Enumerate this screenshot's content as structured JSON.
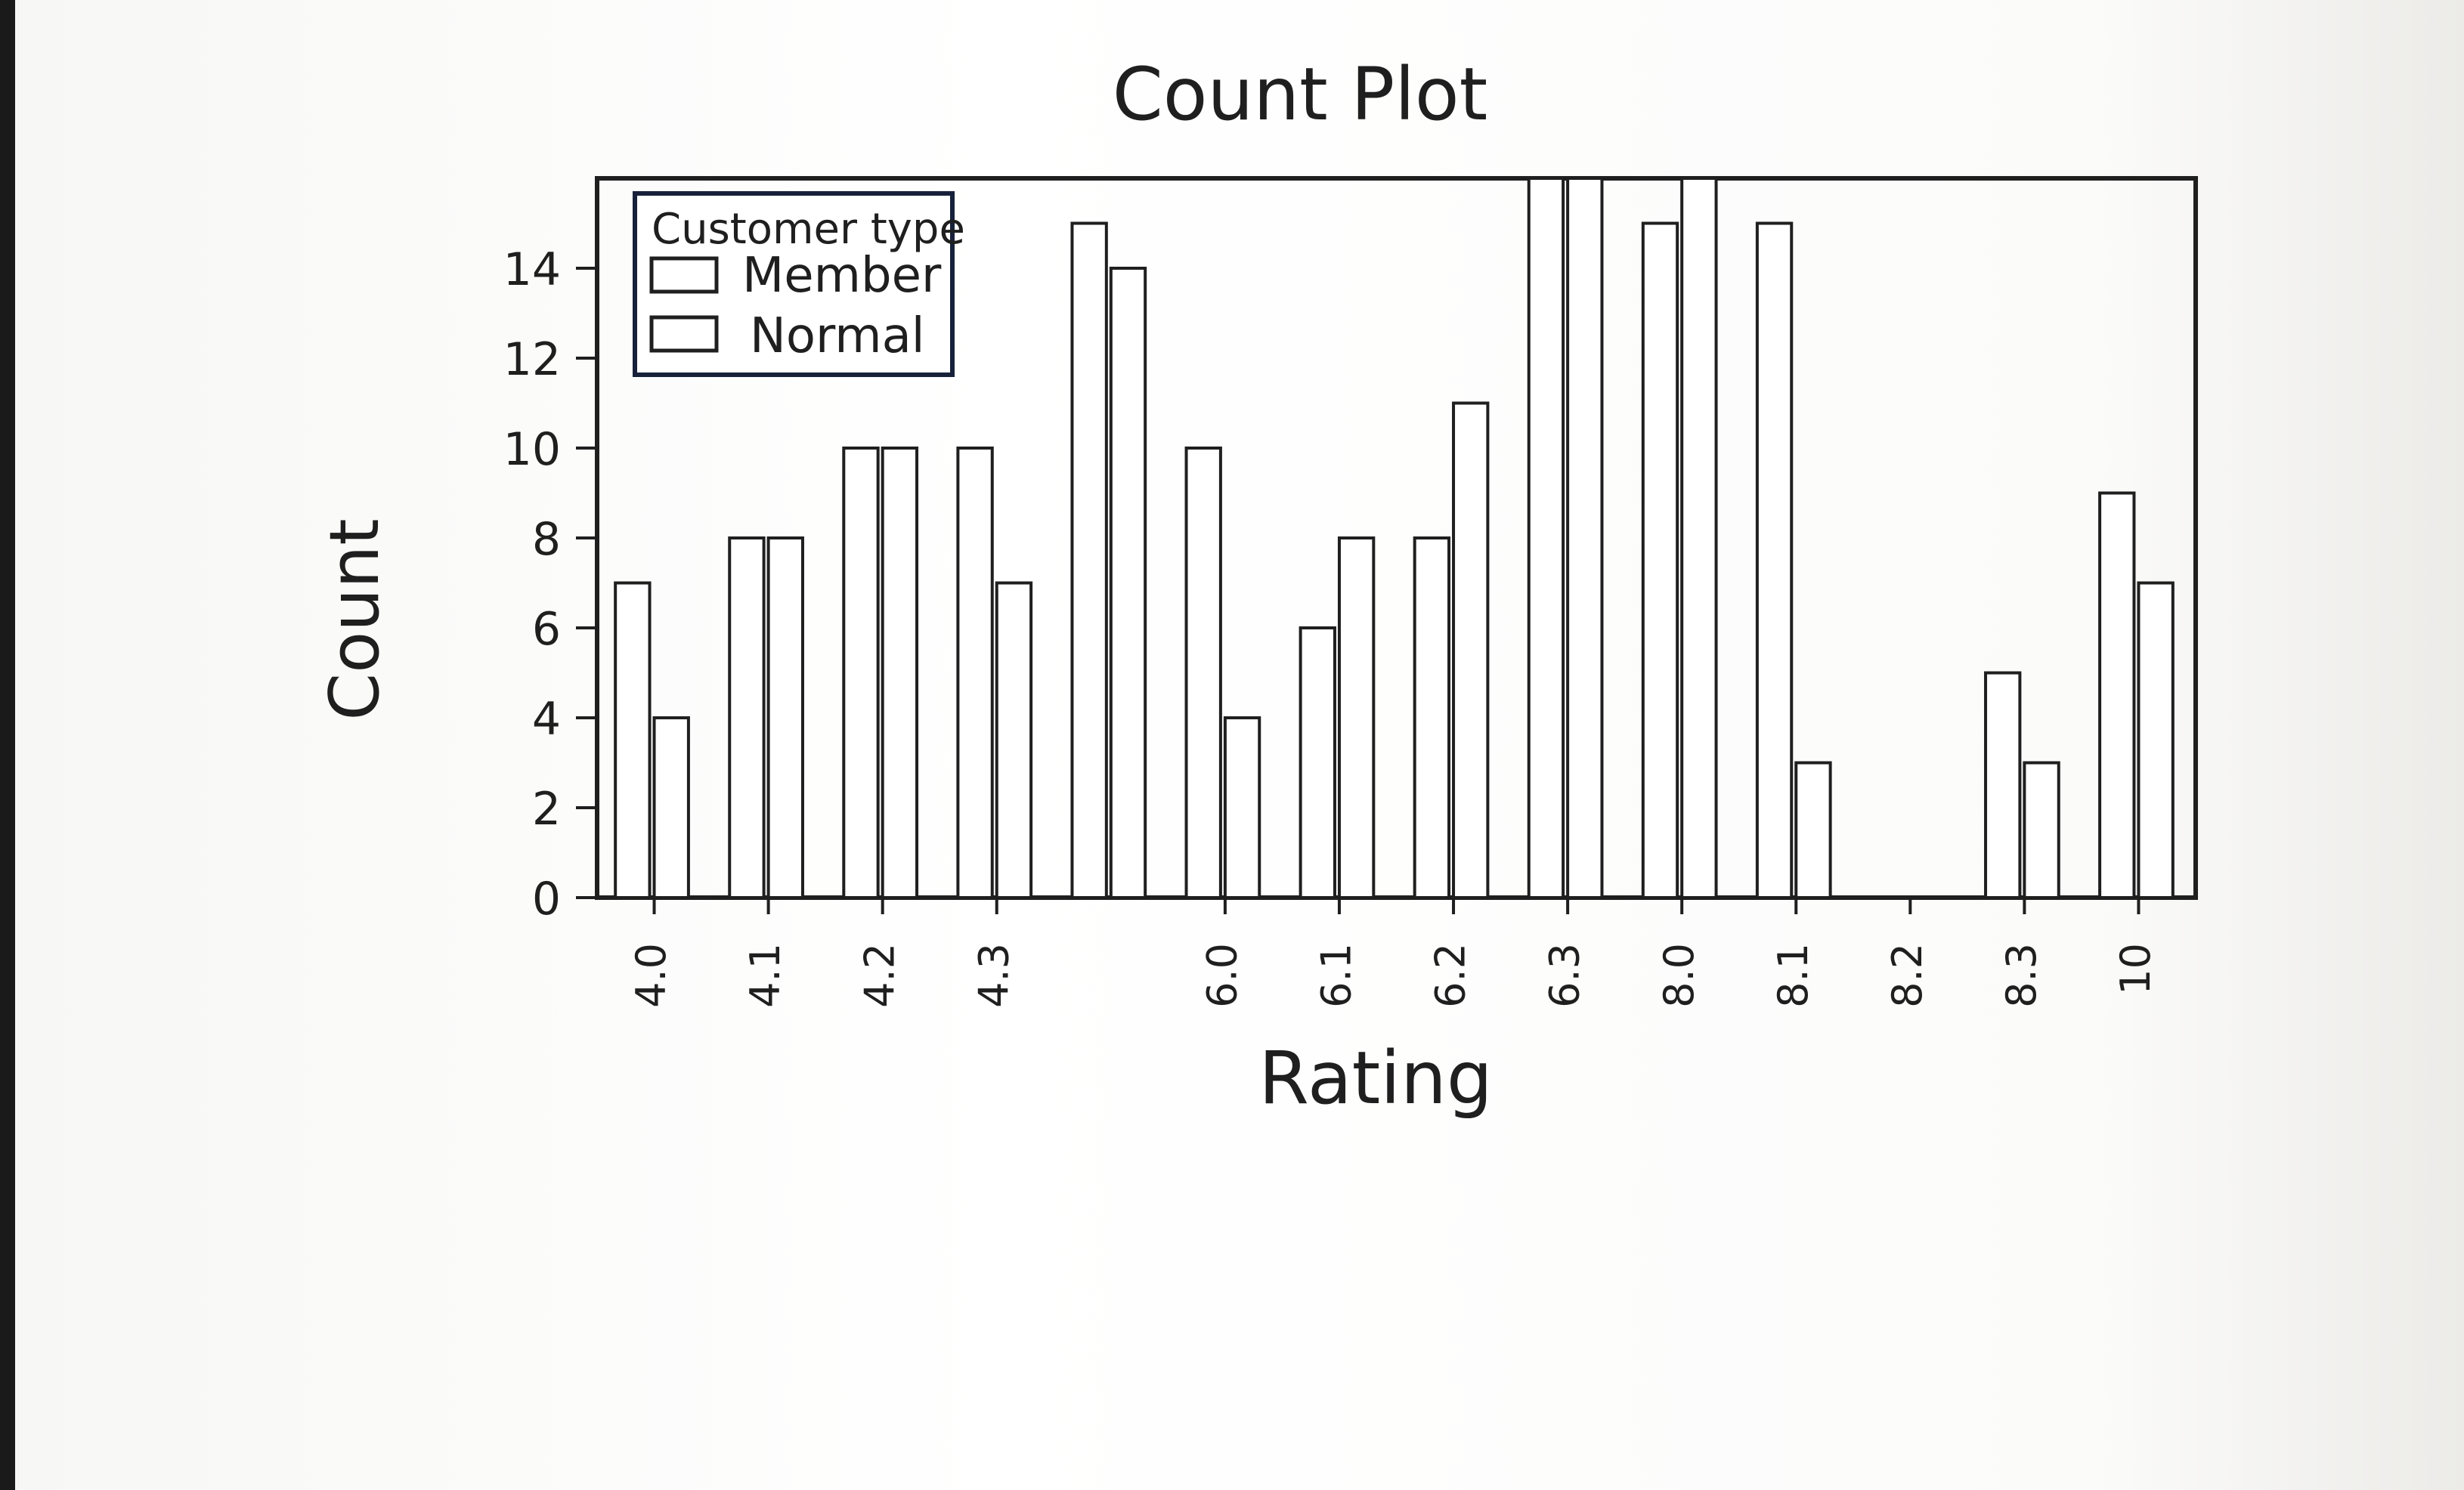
{
  "chart_data": {
    "type": "bar",
    "title": "Count Plot",
    "xlabel": "Rating",
    "ylabel": "Count",
    "ylim": [
      0,
      16
    ],
    "yticks": [
      0,
      2,
      4,
      6,
      8,
      10,
      12,
      14
    ],
    "legend": {
      "title": "Customer type",
      "placement": "top-left"
    },
    "categories": [
      "4.0",
      "4.1",
      "4.2",
      "4.3",
      "",
      "6.0",
      "6.1",
      "6.2",
      "6.3",
      "8.0",
      "8.1",
      "8.2",
      "8.3",
      "10"
    ],
    "series": [
      {
        "name": "Member",
        "values": [
          7,
          8,
          10,
          10,
          15,
          10,
          6,
          8,
          16,
          15,
          15,
          0,
          5,
          9
        ]
      },
      {
        "name": "Normal",
        "values": [
          4,
          8,
          10,
          7,
          14,
          4,
          8,
          11,
          16,
          16,
          3,
          0,
          3,
          7
        ]
      }
    ]
  }
}
